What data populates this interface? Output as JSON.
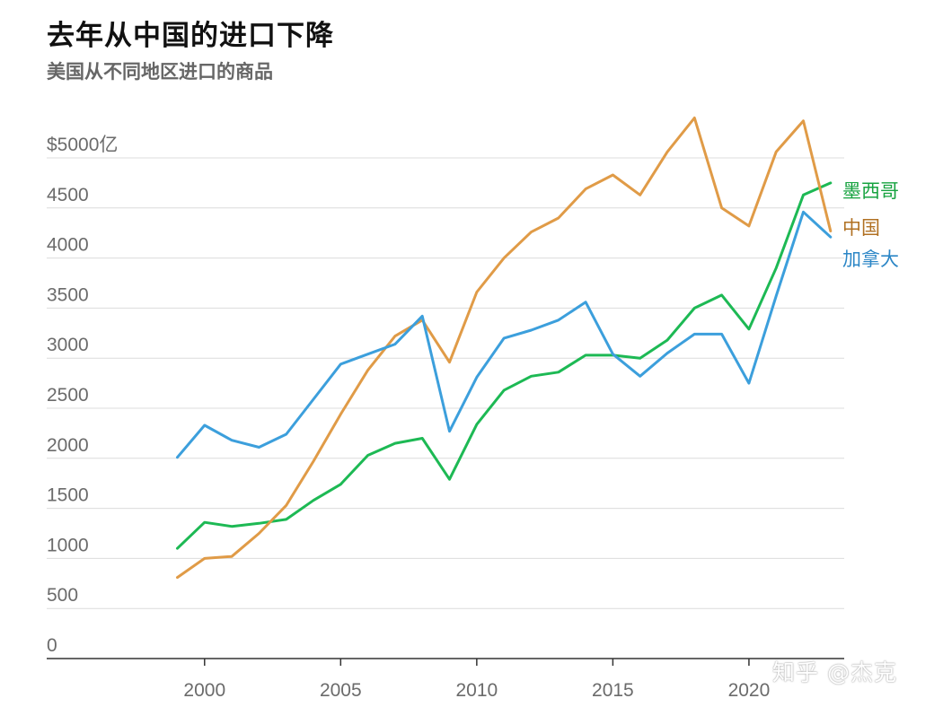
{
  "title": "去年从中国的进口下降",
  "subtitle": "美国从不同地区进口的商品",
  "watermark": "知乎 @杰克",
  "chart_data": {
    "type": "line",
    "title": "去年从中国的进口下降",
    "subtitle": "美国从不同地区进口的商品",
    "xlabel": "",
    "ylabel": "",
    "x": [
      1999,
      2000,
      2001,
      2002,
      2003,
      2004,
      2005,
      2006,
      2007,
      2008,
      2009,
      2010,
      2011,
      2012,
      2013,
      2014,
      2015,
      2016,
      2017,
      2018,
      2019,
      2020,
      2021,
      2022,
      2023
    ],
    "xlim": [
      1994.2,
      2023.5
    ],
    "ylim": [
      0,
      5000
    ],
    "x_ticks": [
      {
        "value": 2000,
        "label": "2000"
      },
      {
        "value": 2005,
        "label": "2005"
      },
      {
        "value": 2010,
        "label": "2010"
      },
      {
        "value": 2015,
        "label": "2015"
      },
      {
        "value": 2020,
        "label": "2020"
      }
    ],
    "y_ticks": [
      {
        "value": 0,
        "label": "0"
      },
      {
        "value": 500,
        "label": "500"
      },
      {
        "value": 1000,
        "label": "1000"
      },
      {
        "value": 1500,
        "label": "1500"
      },
      {
        "value": 2000,
        "label": "2000"
      },
      {
        "value": 2500,
        "label": "2500"
      },
      {
        "value": 3000,
        "label": "3000"
      },
      {
        "value": 3500,
        "label": "3500"
      },
      {
        "value": 4000,
        "label": "4000"
      },
      {
        "value": 4500,
        "label": "4500"
      },
      {
        "value": 5000,
        "label": "$5000亿"
      }
    ],
    "grid": true,
    "legend": "inline-right",
    "series": [
      {
        "name": "墨西哥",
        "color": "#1db954",
        "label_color": "#17a340",
        "values": [
          1100,
          1360,
          1320,
          1350,
          1390,
          1580,
          1740,
          2030,
          2150,
          2200,
          1790,
          2340,
          2680,
          2820,
          2860,
          3030,
          3030,
          3000,
          3180,
          3500,
          3630,
          3290,
          3900,
          4630,
          4750
        ]
      },
      {
        "name": "中国",
        "color": "#e09b47",
        "label_color": "#b07022",
        "values": [
          810,
          1000,
          1020,
          1250,
          1530,
          1970,
          2440,
          2880,
          3220,
          3380,
          2960,
          3660,
          4000,
          4260,
          4400,
          4690,
          4830,
          4630,
          5060,
          5400,
          4500,
          4320,
          5060,
          5370,
          4270
        ]
      },
      {
        "name": "加拿大",
        "color": "#3c9fdc",
        "label_color": "#2b86c6",
        "values": [
          2010,
          2330,
          2180,
          2110,
          2240,
          2590,
          2940,
          3040,
          3140,
          3420,
          2270,
          2810,
          3200,
          3280,
          3380,
          3560,
          3040,
          2820,
          3050,
          3240,
          3240,
          2750,
          3620,
          4460,
          4210
        ]
      }
    ]
  }
}
